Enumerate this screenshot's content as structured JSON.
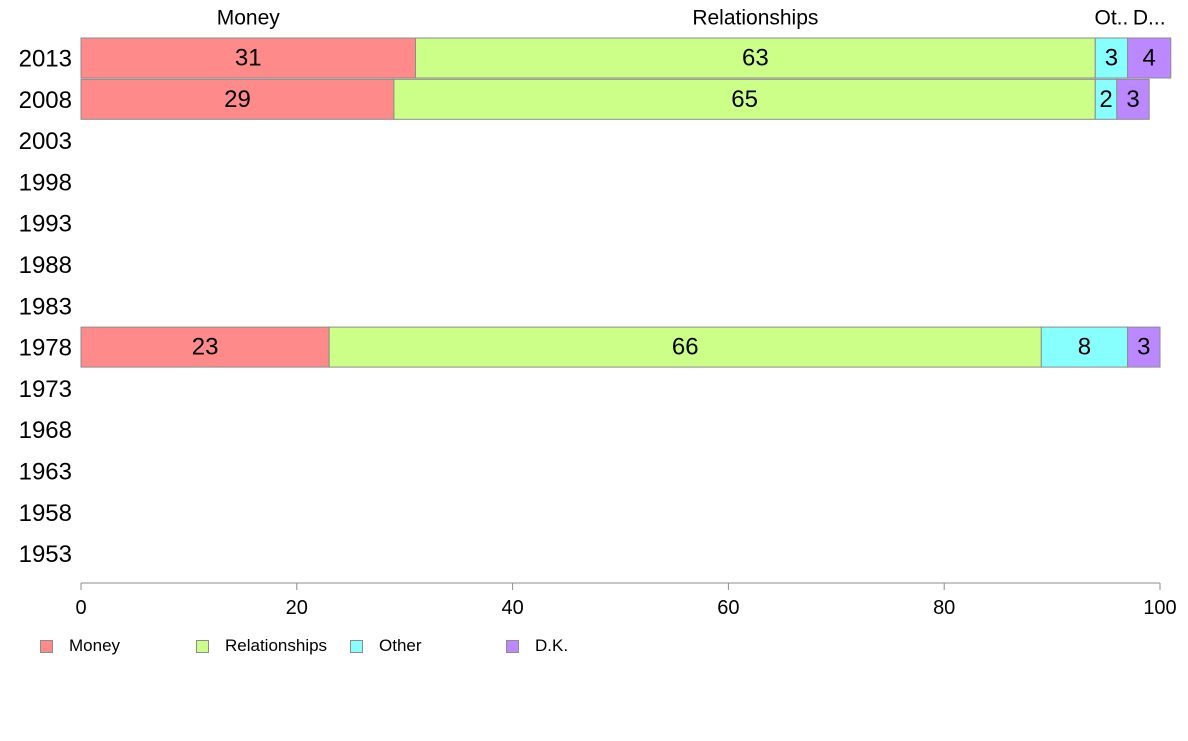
{
  "chart_data": {
    "type": "bar",
    "orientation": "horizontal",
    "stacked": true,
    "categories": [
      "2013",
      "2008",
      "2003",
      "1998",
      "1993",
      "1988",
      "1983",
      "1978",
      "1973",
      "1968",
      "1963",
      "1958",
      "1953"
    ],
    "series": [
      {
        "name": "Money",
        "short_label": "Money",
        "color": "#ff8a8a",
        "values": [
          31,
          29,
          null,
          null,
          null,
          null,
          null,
          23,
          null,
          null,
          null,
          null,
          null
        ]
      },
      {
        "name": "Relationships",
        "short_label": "Relationships",
        "color": "#ccff88",
        "values": [
          63,
          65,
          null,
          null,
          null,
          null,
          null,
          66,
          null,
          null,
          null,
          null,
          null
        ]
      },
      {
        "name": "Other",
        "short_label": "Ot..",
        "color": "#88ffff",
        "values": [
          3,
          2,
          null,
          null,
          null,
          null,
          null,
          8,
          null,
          null,
          null,
          null,
          null
        ]
      },
      {
        "name": "D.K.",
        "short_label": "D...",
        "color": "#bb88ff",
        "values": [
          4,
          3,
          null,
          null,
          null,
          null,
          null,
          3,
          null,
          null,
          null,
          null,
          null
        ]
      }
    ],
    "xlim": [
      0,
      100
    ],
    "xticks": [
      0,
      20,
      40,
      60,
      80,
      100
    ],
    "legend_position": "bottom-left",
    "grid": false
  }
}
